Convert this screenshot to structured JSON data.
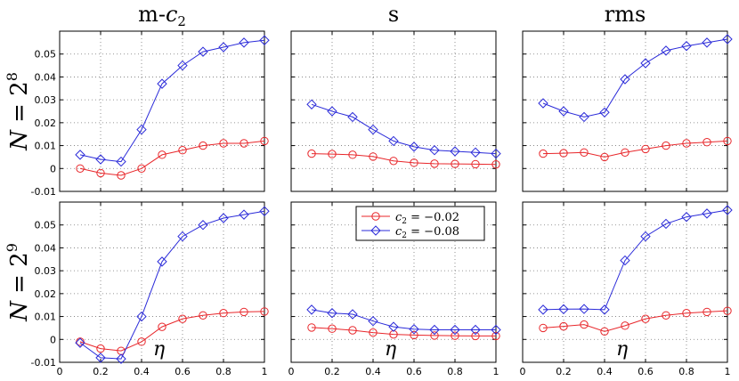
{
  "chart_data": {
    "type": "line",
    "column_titles": [
      "m-",
      "s",
      "rms"
    ],
    "column_title_sub": {
      "var": "c",
      "sub": "2"
    },
    "row_labels": [
      {
        "prefix": "N = 2",
        "exp": "8"
      },
      {
        "prefix": "N = 2",
        "exp": "9"
      }
    ],
    "xlabel": "η",
    "x": [
      0.1,
      0.2,
      0.3,
      0.4,
      0.5,
      0.6,
      0.7,
      0.8,
      0.9,
      1.0
    ],
    "xlim": [
      0,
      1
    ],
    "ylim": [
      -0.01,
      0.06
    ],
    "xticks": [
      "0",
      "0.2",
      "0.4",
      "0.6",
      "0.8",
      "1"
    ],
    "yticks": [
      "-0.01",
      "0",
      "0.01",
      "0.02",
      "0.03",
      "0.04",
      "0.05"
    ],
    "grid": true,
    "legend": {
      "placement": "top-right of middle bottom panel",
      "entries": [
        {
          "label": "c",
          "sub": "2",
          "value": " = −0.02",
          "color": "#e8262a",
          "marker": "circle"
        },
        {
          "label": "c",
          "sub": "2",
          "value": " = −0.08",
          "color": "#2b2bd9",
          "marker": "diamond"
        }
      ]
    },
    "series_colors": {
      "red": "#e8262a",
      "blue": "#2b2bd9"
    },
    "panels": [
      {
        "row": 0,
        "col": 0,
        "red": [
          0.0,
          -0.002,
          -0.003,
          0.0,
          0.006,
          0.008,
          0.01,
          0.011,
          0.011,
          0.012
        ],
        "blue": [
          0.006,
          0.004,
          0.003,
          0.017,
          0.037,
          0.045,
          0.051,
          0.053,
          0.055,
          0.056
        ]
      },
      {
        "row": 0,
        "col": 1,
        "red": [
          0.0065,
          0.0063,
          0.006,
          0.0052,
          0.0033,
          0.0025,
          0.0021,
          0.002,
          0.0019,
          0.0018
        ],
        "blue": [
          0.028,
          0.025,
          0.0225,
          0.017,
          0.012,
          0.0095,
          0.008,
          0.0075,
          0.007,
          0.0065
        ]
      },
      {
        "row": 0,
        "col": 2,
        "red": [
          0.0065,
          0.0067,
          0.007,
          0.005,
          0.007,
          0.0085,
          0.01,
          0.011,
          0.0115,
          0.012
        ],
        "blue": [
          0.0285,
          0.025,
          0.0225,
          0.0245,
          0.039,
          0.046,
          0.0515,
          0.0535,
          0.055,
          0.0565
        ]
      },
      {
        "row": 1,
        "col": 0,
        "red": [
          -0.001,
          -0.004,
          -0.005,
          -0.001,
          0.0055,
          0.009,
          0.0105,
          0.0115,
          0.012,
          0.0122
        ],
        "blue": [
          -0.0015,
          -0.008,
          -0.0085,
          0.01,
          0.034,
          0.045,
          0.05,
          0.053,
          0.0545,
          0.056
        ]
      },
      {
        "row": 1,
        "col": 1,
        "red": [
          0.0052,
          0.0047,
          0.004,
          0.003,
          0.0022,
          0.0019,
          0.0017,
          0.0016,
          0.0015,
          0.0015
        ],
        "blue": [
          0.013,
          0.0115,
          0.011,
          0.008,
          0.0055,
          0.0045,
          0.0042,
          0.0042,
          0.0042,
          0.0042
        ]
      },
      {
        "row": 1,
        "col": 2,
        "red": [
          0.005,
          0.0057,
          0.0065,
          0.0035,
          0.006,
          0.009,
          0.0105,
          0.0115,
          0.012,
          0.0125
        ],
        "blue": [
          0.013,
          0.0132,
          0.0133,
          0.013,
          0.0345,
          0.045,
          0.0505,
          0.0535,
          0.055,
          0.0565
        ]
      }
    ]
  }
}
